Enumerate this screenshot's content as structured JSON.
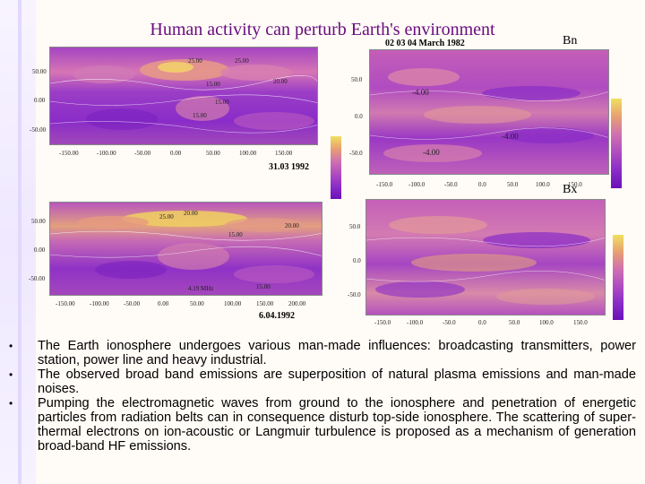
{
  "slide": {
    "title": "Human activity can perturb Earth's environment"
  },
  "panels": {
    "top_right_header": "02 03 04 March 1982",
    "top_right_letter": "Bn",
    "bottom_right_letter": "Bx",
    "top_left_date": "31.03 1992",
    "bottom_left_date": "6.04.1992",
    "top_left_x_ticks": [
      "-150.00",
      "-100.00",
      "-50.00",
      "0.00",
      "50.00",
      "100.00",
      "150.00"
    ],
    "top_left_y_ticks": [
      "50.00",
      "0.00",
      "-50.00"
    ],
    "bottom_left_x_ticks": [
      "-150.00",
      "-100.00",
      "-50.00",
      "0.00",
      "50.00",
      "100.00",
      "150.00",
      "200.00"
    ],
    "bottom_left_y_ticks": [
      "50.00",
      "0.00",
      "-50.00"
    ],
    "top_right_x_ticks": [
      "-150.0",
      "-100.0",
      "-50.0",
      "0.0",
      "50.0",
      "100.0",
      "150.0"
    ],
    "top_right_y_ticks": [
      "50.0",
      "0.0",
      "-50.0"
    ],
    "bottom_right_x_ticks": [
      "-150.0",
      "-100.0",
      "-50.0",
      "0.0",
      "50.0",
      "100.0",
      "150.0"
    ],
    "bottom_right_y_ticks": [
      "50.0",
      "0.0",
      "-50.0"
    ],
    "contour_labels_top_left": [
      "25.00",
      "25.00",
      "20.00",
      "15.00",
      "15.00",
      "15.00"
    ],
    "contour_labels_top_right": [
      "-4.00",
      "-4.00",
      "-4.00"
    ],
    "contour_labels_bottom_left": [
      "25.00",
      "20.00",
      "20.00",
      "15.00",
      "15.00",
      "4.19 MHz"
    ]
  },
  "bullets": [
    "The Earth ionosphere undergoes various man-made influences: broadcasting transmitters, power station, power line and heavy industrial.",
    "The observed broad band emissions are superposition of natural plasma emissions and man-made noises.",
    "Pumping the electromagnetic waves from ground to the ionosphere and penetration of energetic particles from radiation belts can in consequence disturb top-side ionosphere. The scattering of super-thermal electrons on ion-acoustic or Langmuir turbulence is proposed as a mechanism of generation broad-band HF emissions."
  ],
  "colors": {
    "title": "#6a0d80",
    "map_purple": "#8a2cc8",
    "map_violet": "#b04cc0",
    "map_magenta": "#d070b0",
    "map_orange": "#e8a070",
    "map_yellow": "#f0d060"
  }
}
